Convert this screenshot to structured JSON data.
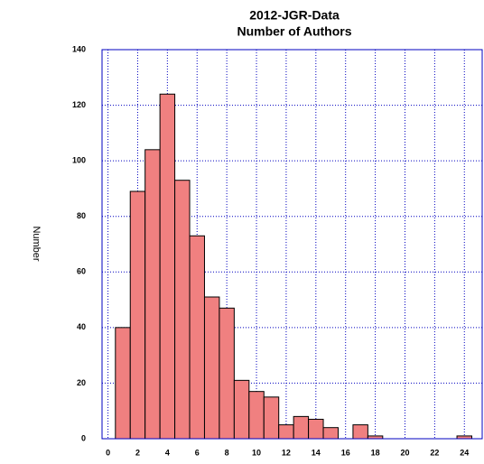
{
  "chart_data": {
    "type": "histogram",
    "title": "2012-JGR-Data",
    "subtitle": "Number of Authors",
    "y_label": "Number",
    "bins": [
      0.5,
      1.5,
      2.5,
      3.5,
      4.5,
      5.5,
      6.5,
      7.5,
      8.5,
      9.5,
      10.5,
      11.5,
      12.5,
      13.5,
      14.5,
      15.5,
      16.5,
      17.5,
      18.5,
      19.5,
      20.5,
      21.5,
      22.5,
      23.5,
      24.5
    ],
    "values": [
      40,
      89,
      104,
      124,
      93,
      73,
      51,
      47,
      21,
      17,
      15,
      5,
      8,
      7,
      4,
      0,
      5,
      1,
      0,
      0,
      0,
      0,
      0,
      1
    ],
    "color": "#f08080",
    "xlim": [
      -0.4,
      25.2
    ],
    "xticks": [
      0,
      2,
      4,
      6,
      8,
      10,
      12,
      14,
      16,
      18,
      20,
      22,
      24
    ],
    "ylim": [
      0,
      140
    ],
    "yticks": [
      0,
      20,
      40,
      60,
      80,
      100,
      120,
      140
    ],
    "grid": true
  }
}
